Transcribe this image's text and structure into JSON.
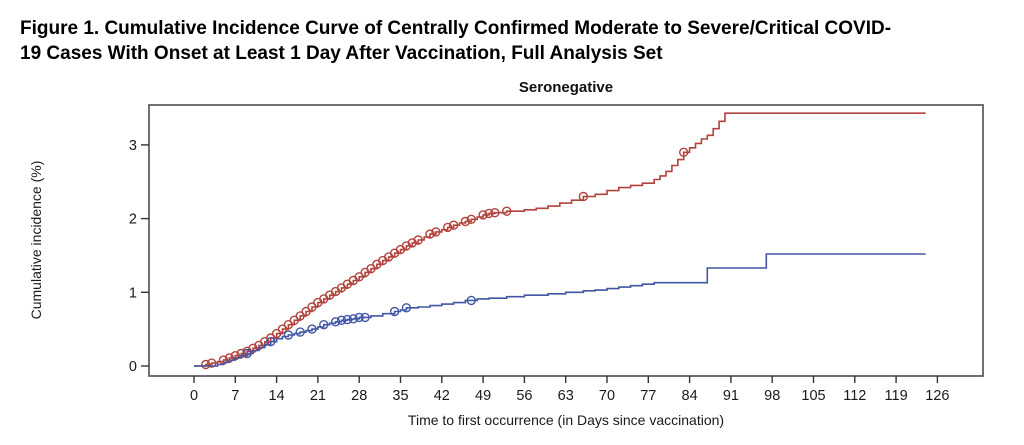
{
  "figure": {
    "title_line1": "Figure 1. Cumulative Incidence Curve of Centrally Confirmed Moderate to Severe/Critical COVID-",
    "title_line2": "19 Cases With Onset at Least 1 Day After Vaccination, Full Analysis Set"
  },
  "chart_data": {
    "type": "line",
    "subtitle": "Seronegative",
    "xlabel": "Time to first occurrence (in Days since vaccination)",
    "ylabel": "Cumulative incidence (%)",
    "interpolation": "step-after",
    "grid": false,
    "legend": "none",
    "xticks": [
      0,
      7,
      14,
      21,
      28,
      35,
      42,
      49,
      56,
      63,
      70,
      77,
      84,
      91,
      98,
      105,
      112,
      119,
      126
    ],
    "yticks": [
      0,
      1,
      2,
      3
    ],
    "xlim": [
      -7.6,
      133.7
    ],
    "ylim": [
      -0.14,
      3.54
    ],
    "colors": {
      "frame": "#606060",
      "tick": "#333333",
      "text": "#1a1a1a"
    },
    "series": [
      {
        "name": "series_1_red",
        "color": "#b2423c",
        "points": [
          [
            0,
            0
          ],
          [
            1.5,
            0
          ],
          [
            2,
            0.02
          ],
          [
            3,
            0.04
          ],
          [
            4,
            0.06
          ],
          [
            5,
            0.08
          ],
          [
            6,
            0.11
          ],
          [
            7,
            0.14
          ],
          [
            8,
            0.17
          ],
          [
            9,
            0.2
          ],
          [
            10,
            0.24
          ],
          [
            11,
            0.28
          ],
          [
            12,
            0.33
          ],
          [
            13,
            0.38
          ],
          [
            14,
            0.44
          ],
          [
            15,
            0.5
          ],
          [
            16,
            0.56
          ],
          [
            17,
            0.62
          ],
          [
            18,
            0.68
          ],
          [
            19,
            0.74
          ],
          [
            20,
            0.8
          ],
          [
            21,
            0.86
          ],
          [
            22,
            0.91
          ],
          [
            23,
            0.96
          ],
          [
            24,
            1.01
          ],
          [
            25,
            1.06
          ],
          [
            26,
            1.11
          ],
          [
            27,
            1.16
          ],
          [
            28,
            1.21
          ],
          [
            29,
            1.27
          ],
          [
            30,
            1.32
          ],
          [
            31,
            1.38
          ],
          [
            32,
            1.43
          ],
          [
            33,
            1.48
          ],
          [
            34,
            1.53
          ],
          [
            35,
            1.58
          ],
          [
            36,
            1.63
          ],
          [
            37,
            1.67
          ],
          [
            38,
            1.71
          ],
          [
            39,
            1.75
          ],
          [
            40,
            1.79
          ],
          [
            41,
            1.82
          ],
          [
            42,
            1.85
          ],
          [
            43,
            1.88
          ],
          [
            44,
            1.91
          ],
          [
            45,
            1.94
          ],
          [
            46,
            1.96
          ],
          [
            47,
            1.99
          ],
          [
            48,
            2.02
          ],
          [
            49,
            2.05
          ],
          [
            50,
            2.07
          ],
          [
            51,
            2.08
          ],
          [
            53,
            2.1
          ],
          [
            56,
            2.12
          ],
          [
            58,
            2.14
          ],
          [
            60,
            2.17
          ],
          [
            62,
            2.21
          ],
          [
            64,
            2.25
          ],
          [
            66,
            2.3
          ],
          [
            68,
            2.33
          ],
          [
            70,
            2.38
          ],
          [
            72,
            2.42
          ],
          [
            74,
            2.45
          ],
          [
            76,
            2.48
          ],
          [
            78,
            2.53
          ],
          [
            79,
            2.58
          ],
          [
            80,
            2.64
          ],
          [
            81,
            2.72
          ],
          [
            82,
            2.8
          ],
          [
            83,
            2.9
          ],
          [
            84,
            2.96
          ],
          [
            85,
            3.02
          ],
          [
            86,
            3.08
          ],
          [
            87,
            3.13
          ],
          [
            88,
            3.22
          ],
          [
            89,
            3.32
          ],
          [
            90,
            3.43
          ],
          [
            124,
            3.43
          ]
        ],
        "markers": [
          [
            2,
            0.02
          ],
          [
            3,
            0.04
          ],
          [
            5,
            0.08
          ],
          [
            6,
            0.11
          ],
          [
            7,
            0.14
          ],
          [
            8,
            0.17
          ],
          [
            9,
            0.2
          ],
          [
            10,
            0.24
          ],
          [
            11,
            0.28
          ],
          [
            12,
            0.33
          ],
          [
            13,
            0.38
          ],
          [
            14,
            0.44
          ],
          [
            15,
            0.5
          ],
          [
            16,
            0.56
          ],
          [
            17,
            0.62
          ],
          [
            18,
            0.68
          ],
          [
            19,
            0.74
          ],
          [
            20,
            0.8
          ],
          [
            21,
            0.86
          ],
          [
            22,
            0.91
          ],
          [
            23,
            0.96
          ],
          [
            24,
            1.01
          ],
          [
            25,
            1.06
          ],
          [
            26,
            1.11
          ],
          [
            27,
            1.16
          ],
          [
            28,
            1.21
          ],
          [
            29,
            1.27
          ],
          [
            30,
            1.32
          ],
          [
            31,
            1.38
          ],
          [
            32,
            1.43
          ],
          [
            33,
            1.48
          ],
          [
            34,
            1.53
          ],
          [
            35,
            1.58
          ],
          [
            36,
            1.63
          ],
          [
            37,
            1.67
          ],
          [
            38,
            1.71
          ],
          [
            40,
            1.79
          ],
          [
            41,
            1.82
          ],
          [
            43,
            1.88
          ],
          [
            44,
            1.91
          ],
          [
            46,
            1.96
          ],
          [
            47,
            1.99
          ],
          [
            49,
            2.05
          ],
          [
            50,
            2.07
          ],
          [
            51,
            2.08
          ],
          [
            53,
            2.1
          ],
          [
            66,
            2.3
          ],
          [
            83,
            2.9
          ]
        ]
      },
      {
        "name": "series_2_blue",
        "color": "#4156a4",
        "points": [
          [
            0,
            0
          ],
          [
            3,
            0
          ],
          [
            4,
            0.02
          ],
          [
            5,
            0.05
          ],
          [
            6,
            0.08
          ],
          [
            7,
            0.11
          ],
          [
            8,
            0.14
          ],
          [
            9,
            0.17
          ],
          [
            10,
            0.21
          ],
          [
            11,
            0.25
          ],
          [
            12,
            0.29
          ],
          [
            13,
            0.33
          ],
          [
            14,
            0.37
          ],
          [
            15,
            0.4
          ],
          [
            16,
            0.42
          ],
          [
            17,
            0.44
          ],
          [
            18,
            0.46
          ],
          [
            19,
            0.48
          ],
          [
            20,
            0.5
          ],
          [
            21,
            0.53
          ],
          [
            22,
            0.56
          ],
          [
            23,
            0.58
          ],
          [
            24,
            0.6
          ],
          [
            25,
            0.62
          ],
          [
            26,
            0.63
          ],
          [
            27,
            0.64
          ],
          [
            28,
            0.66
          ],
          [
            30,
            0.68
          ],
          [
            32,
            0.71
          ],
          [
            34,
            0.74
          ],
          [
            35,
            0.76
          ],
          [
            36,
            0.79
          ],
          [
            38,
            0.8
          ],
          [
            40,
            0.82
          ],
          [
            42,
            0.84
          ],
          [
            44,
            0.86
          ],
          [
            46,
            0.89
          ],
          [
            48,
            0.91
          ],
          [
            50,
            0.92
          ],
          [
            53,
            0.94
          ],
          [
            56,
            0.96
          ],
          [
            60,
            0.98
          ],
          [
            63,
            1.0
          ],
          [
            66,
            1.02
          ],
          [
            68,
            1.03
          ],
          [
            70,
            1.05
          ],
          [
            72,
            1.07
          ],
          [
            74,
            1.09
          ],
          [
            76,
            1.11
          ],
          [
            78,
            1.13
          ],
          [
            87,
            1.33
          ],
          [
            97,
            1.52
          ],
          [
            124,
            1.52
          ]
        ],
        "markers": [
          [
            9,
            0.17
          ],
          [
            13,
            0.33
          ],
          [
            16,
            0.42
          ],
          [
            18,
            0.46
          ],
          [
            20,
            0.5
          ],
          [
            22,
            0.56
          ],
          [
            24,
            0.6
          ],
          [
            25,
            0.62
          ],
          [
            26,
            0.63
          ],
          [
            27,
            0.64
          ],
          [
            28,
            0.66
          ],
          [
            29,
            0.66
          ],
          [
            34,
            0.74
          ],
          [
            36,
            0.79
          ],
          [
            47,
            0.89
          ]
        ]
      }
    ]
  }
}
